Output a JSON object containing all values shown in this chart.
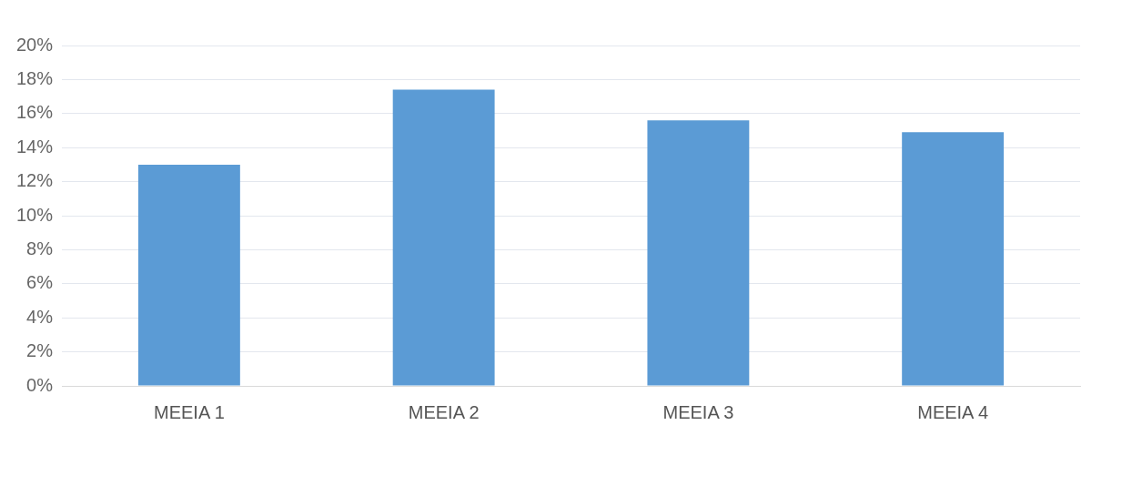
{
  "chart_data": {
    "type": "bar",
    "categories": [
      "MEEIA 1",
      "MEEIA 2",
      "MEEIA 3",
      "MEEIA 4"
    ],
    "values": [
      13,
      17.4,
      15.6,
      14.9
    ],
    "color": "#5b9bd5",
    "ylim": [
      0,
      20
    ],
    "yticks": [
      {
        "value": 0,
        "label": "0%"
      },
      {
        "value": 2,
        "label": "2%"
      },
      {
        "value": 4,
        "label": "4%"
      },
      {
        "value": 6,
        "label": "6%"
      },
      {
        "value": 8,
        "label": "8%"
      },
      {
        "value": 10,
        "label": "10%"
      },
      {
        "value": 12,
        "label": "12%"
      },
      {
        "value": 14,
        "label": "14%"
      },
      {
        "value": 16,
        "label": "16%"
      },
      {
        "value": 18,
        "label": "18%"
      },
      {
        "value": 20,
        "label": "20%"
      }
    ],
    "grid": "y",
    "legend": false
  }
}
